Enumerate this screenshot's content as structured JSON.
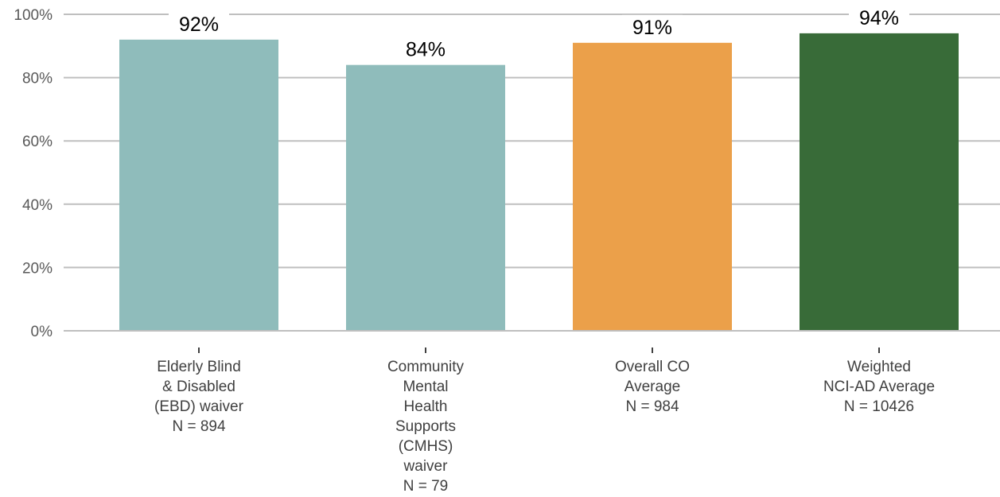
{
  "chart_data": {
    "type": "bar",
    "title": "",
    "xlabel": "",
    "ylabel": "",
    "ylim": [
      0,
      100
    ],
    "yticks": [
      "0%",
      "20%",
      "40%",
      "60%",
      "80%",
      "100%"
    ],
    "grid": true,
    "legend": "none",
    "categories": [
      [
        "Elderly Blind",
        "& Disabled",
        "(EBD) waiver",
        "N = 894"
      ],
      [
        "Community",
        "Mental",
        "Health",
        "Supports",
        "(CMHS)",
        "waiver",
        "N = 79"
      ],
      [
        "Overall CO",
        "Average",
        "N = 984"
      ],
      [
        "Weighted",
        "NCI-AD Average",
        "N = 10426"
      ]
    ],
    "values": [
      92,
      84,
      91,
      94
    ],
    "data_labels": [
      "92%",
      "84%",
      "91%",
      "94%"
    ],
    "colors": [
      "#8fbcbb",
      "#8fbcbb",
      "#eba04a",
      "#386b38"
    ]
  }
}
